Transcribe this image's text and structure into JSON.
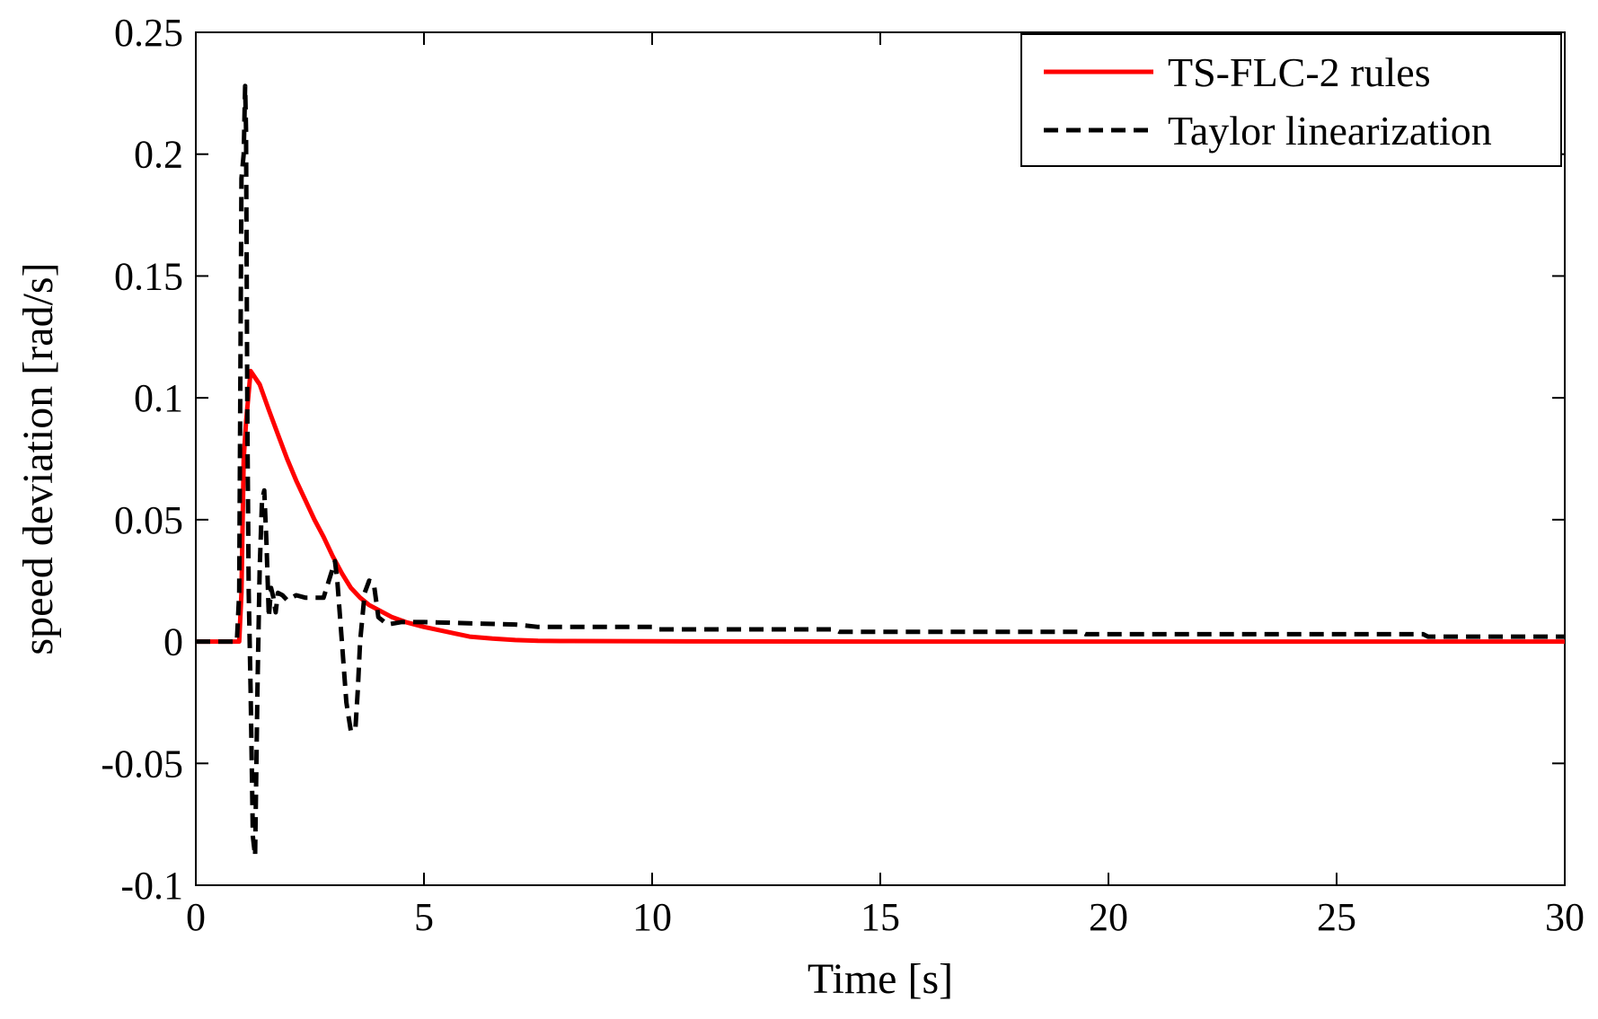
{
  "chart_data": {
    "type": "line",
    "title": "",
    "xlabel": "Time [s]",
    "ylabel": "speed deviation [rad/s]",
    "xlim": [
      0,
      30
    ],
    "ylim": [
      -0.1,
      0.25
    ],
    "xticks": [
      0,
      5,
      10,
      15,
      20,
      25,
      30
    ],
    "yticks": [
      -0.1,
      -0.05,
      0,
      0.05,
      0.1,
      0.15,
      0.2,
      0.25
    ],
    "xtick_labels": [
      "0",
      "5",
      "10",
      "15",
      "20",
      "25",
      "30"
    ],
    "ytick_labels": [
      "-0.1",
      "-0.05",
      "0",
      "0.05",
      "0.1",
      "0.15",
      "0.2",
      "0.25"
    ],
    "grid": false,
    "legend_position": "top-right",
    "series": [
      {
        "name": "TS-FLC-2 rules",
        "color": "#ff0000",
        "style": "solid",
        "x": [
          0,
          0.95,
          1.0,
          1.05,
          1.1,
          1.2,
          1.4,
          1.6,
          1.8,
          2.0,
          2.2,
          2.4,
          2.6,
          2.8,
          3.0,
          3.2,
          3.4,
          3.6,
          3.8,
          4.0,
          4.3,
          4.6,
          5.0,
          5.5,
          6.0,
          6.5,
          7.0,
          7.5,
          8.0,
          10,
          15,
          20,
          25,
          30
        ],
        "y": [
          0,
          0,
          0.02,
          0.075,
          0.09,
          0.111,
          0.1055,
          0.095,
          0.085,
          0.075,
          0.066,
          0.058,
          0.05,
          0.043,
          0.035,
          0.028,
          0.022,
          0.018,
          0.015,
          0.013,
          0.01,
          0.008,
          0.006,
          0.004,
          0.002,
          0.0012,
          0.0006,
          0.0003,
          0.0002,
          0.0001,
          0,
          0,
          0,
          0
        ]
      },
      {
        "name": "Taylor linearization",
        "color": "#000000",
        "style": "dashed",
        "x": [
          0,
          0.9,
          0.95,
          1.0,
          1.05,
          1.08,
          1.1,
          1.13,
          1.16,
          1.2,
          1.25,
          1.3,
          1.35,
          1.4,
          1.45,
          1.5,
          1.55,
          1.6,
          1.65,
          1.7,
          1.75,
          1.8,
          1.9,
          2.0,
          2.2,
          2.4,
          2.6,
          2.8,
          3.0,
          3.05,
          3.1,
          3.2,
          3.3,
          3.4,
          3.5,
          3.55,
          3.6,
          3.7,
          3.8,
          3.9,
          4.0,
          4.2,
          4.5,
          5.0,
          7.0,
          7.5,
          10.0,
          10.1,
          14.0,
          14.1,
          19.4,
          19.5,
          26.9,
          27.0,
          30
        ],
        "y": [
          0,
          0,
          0.02,
          0.19,
          0.2,
          0.228,
          0.21,
          0.09,
          0.02,
          -0.02,
          -0.08,
          -0.088,
          -0.02,
          0.03,
          0.058,
          0.062,
          0.04,
          0.01,
          0.022,
          0.018,
          0.012,
          0.02,
          0.019,
          0.017,
          0.019,
          0.018,
          0.018,
          0.018,
          0.03,
          0.033,
          0.025,
          0.0,
          -0.025,
          -0.037,
          -0.035,
          -0.02,
          0.0,
          0.02,
          0.025,
          0.024,
          0.01,
          0.007,
          0.008,
          0.008,
          0.007,
          0.006,
          0.006,
          0.005,
          0.005,
          0.004,
          0.004,
          0.003,
          0.003,
          0.002,
          0.002
        ]
      }
    ]
  }
}
